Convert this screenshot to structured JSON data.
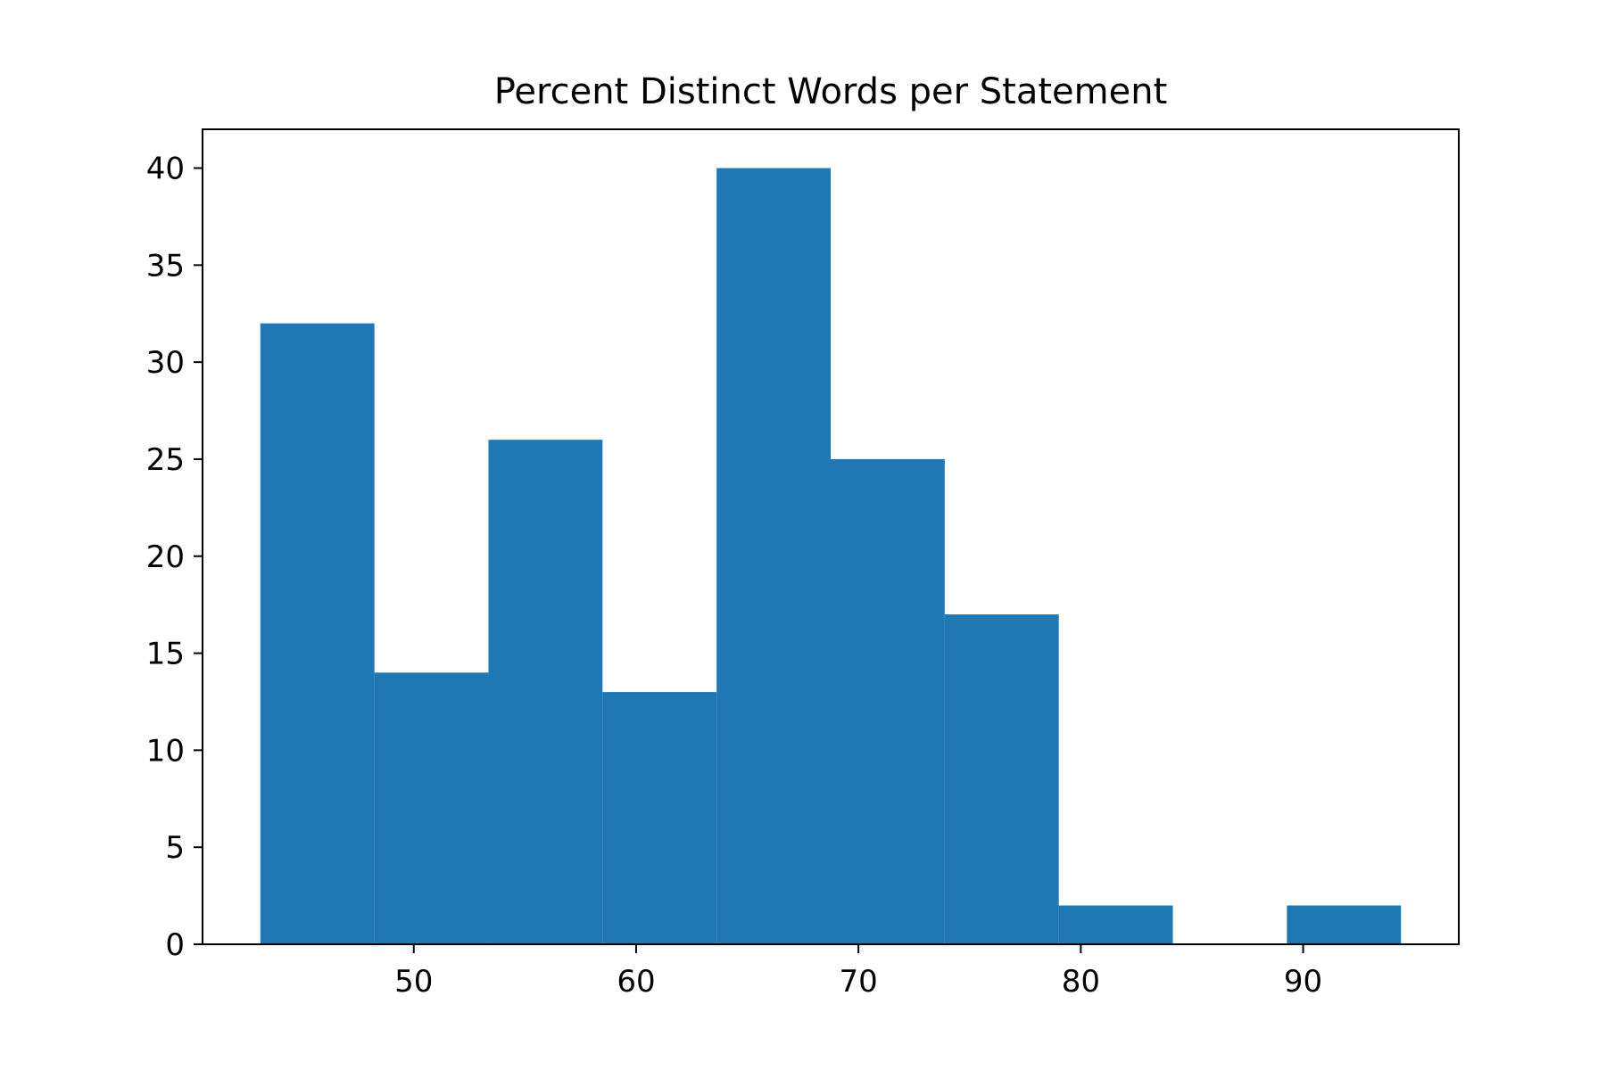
{
  "chart_data": {
    "type": "bar",
    "title": "Percent Distinct Words per Statement",
    "xlabel": "",
    "ylabel": "",
    "xlim": [
      40.5,
      97
    ],
    "ylim": [
      0,
      42
    ],
    "bins": [
      {
        "start": 43.1,
        "end": 48.23,
        "count": 32
      },
      {
        "start": 48.23,
        "end": 53.36,
        "count": 14
      },
      {
        "start": 53.36,
        "end": 58.49,
        "count": 26
      },
      {
        "start": 58.49,
        "end": 63.62,
        "count": 13
      },
      {
        "start": 63.62,
        "end": 68.75,
        "count": 40
      },
      {
        "start": 68.75,
        "end": 73.88,
        "count": 25
      },
      {
        "start": 73.88,
        "end": 79.01,
        "count": 17
      },
      {
        "start": 79.01,
        "end": 84.14,
        "count": 2
      },
      {
        "start": 84.14,
        "end": 89.27,
        "count": 0
      },
      {
        "start": 89.27,
        "end": 94.4,
        "count": 2
      }
    ],
    "x_ticks": [
      50,
      60,
      70,
      80,
      90
    ],
    "y_ticks": [
      0,
      5,
      10,
      15,
      20,
      25,
      30,
      35,
      40
    ],
    "bar_color": "#1f77b4",
    "grid": false,
    "legend": "none"
  }
}
